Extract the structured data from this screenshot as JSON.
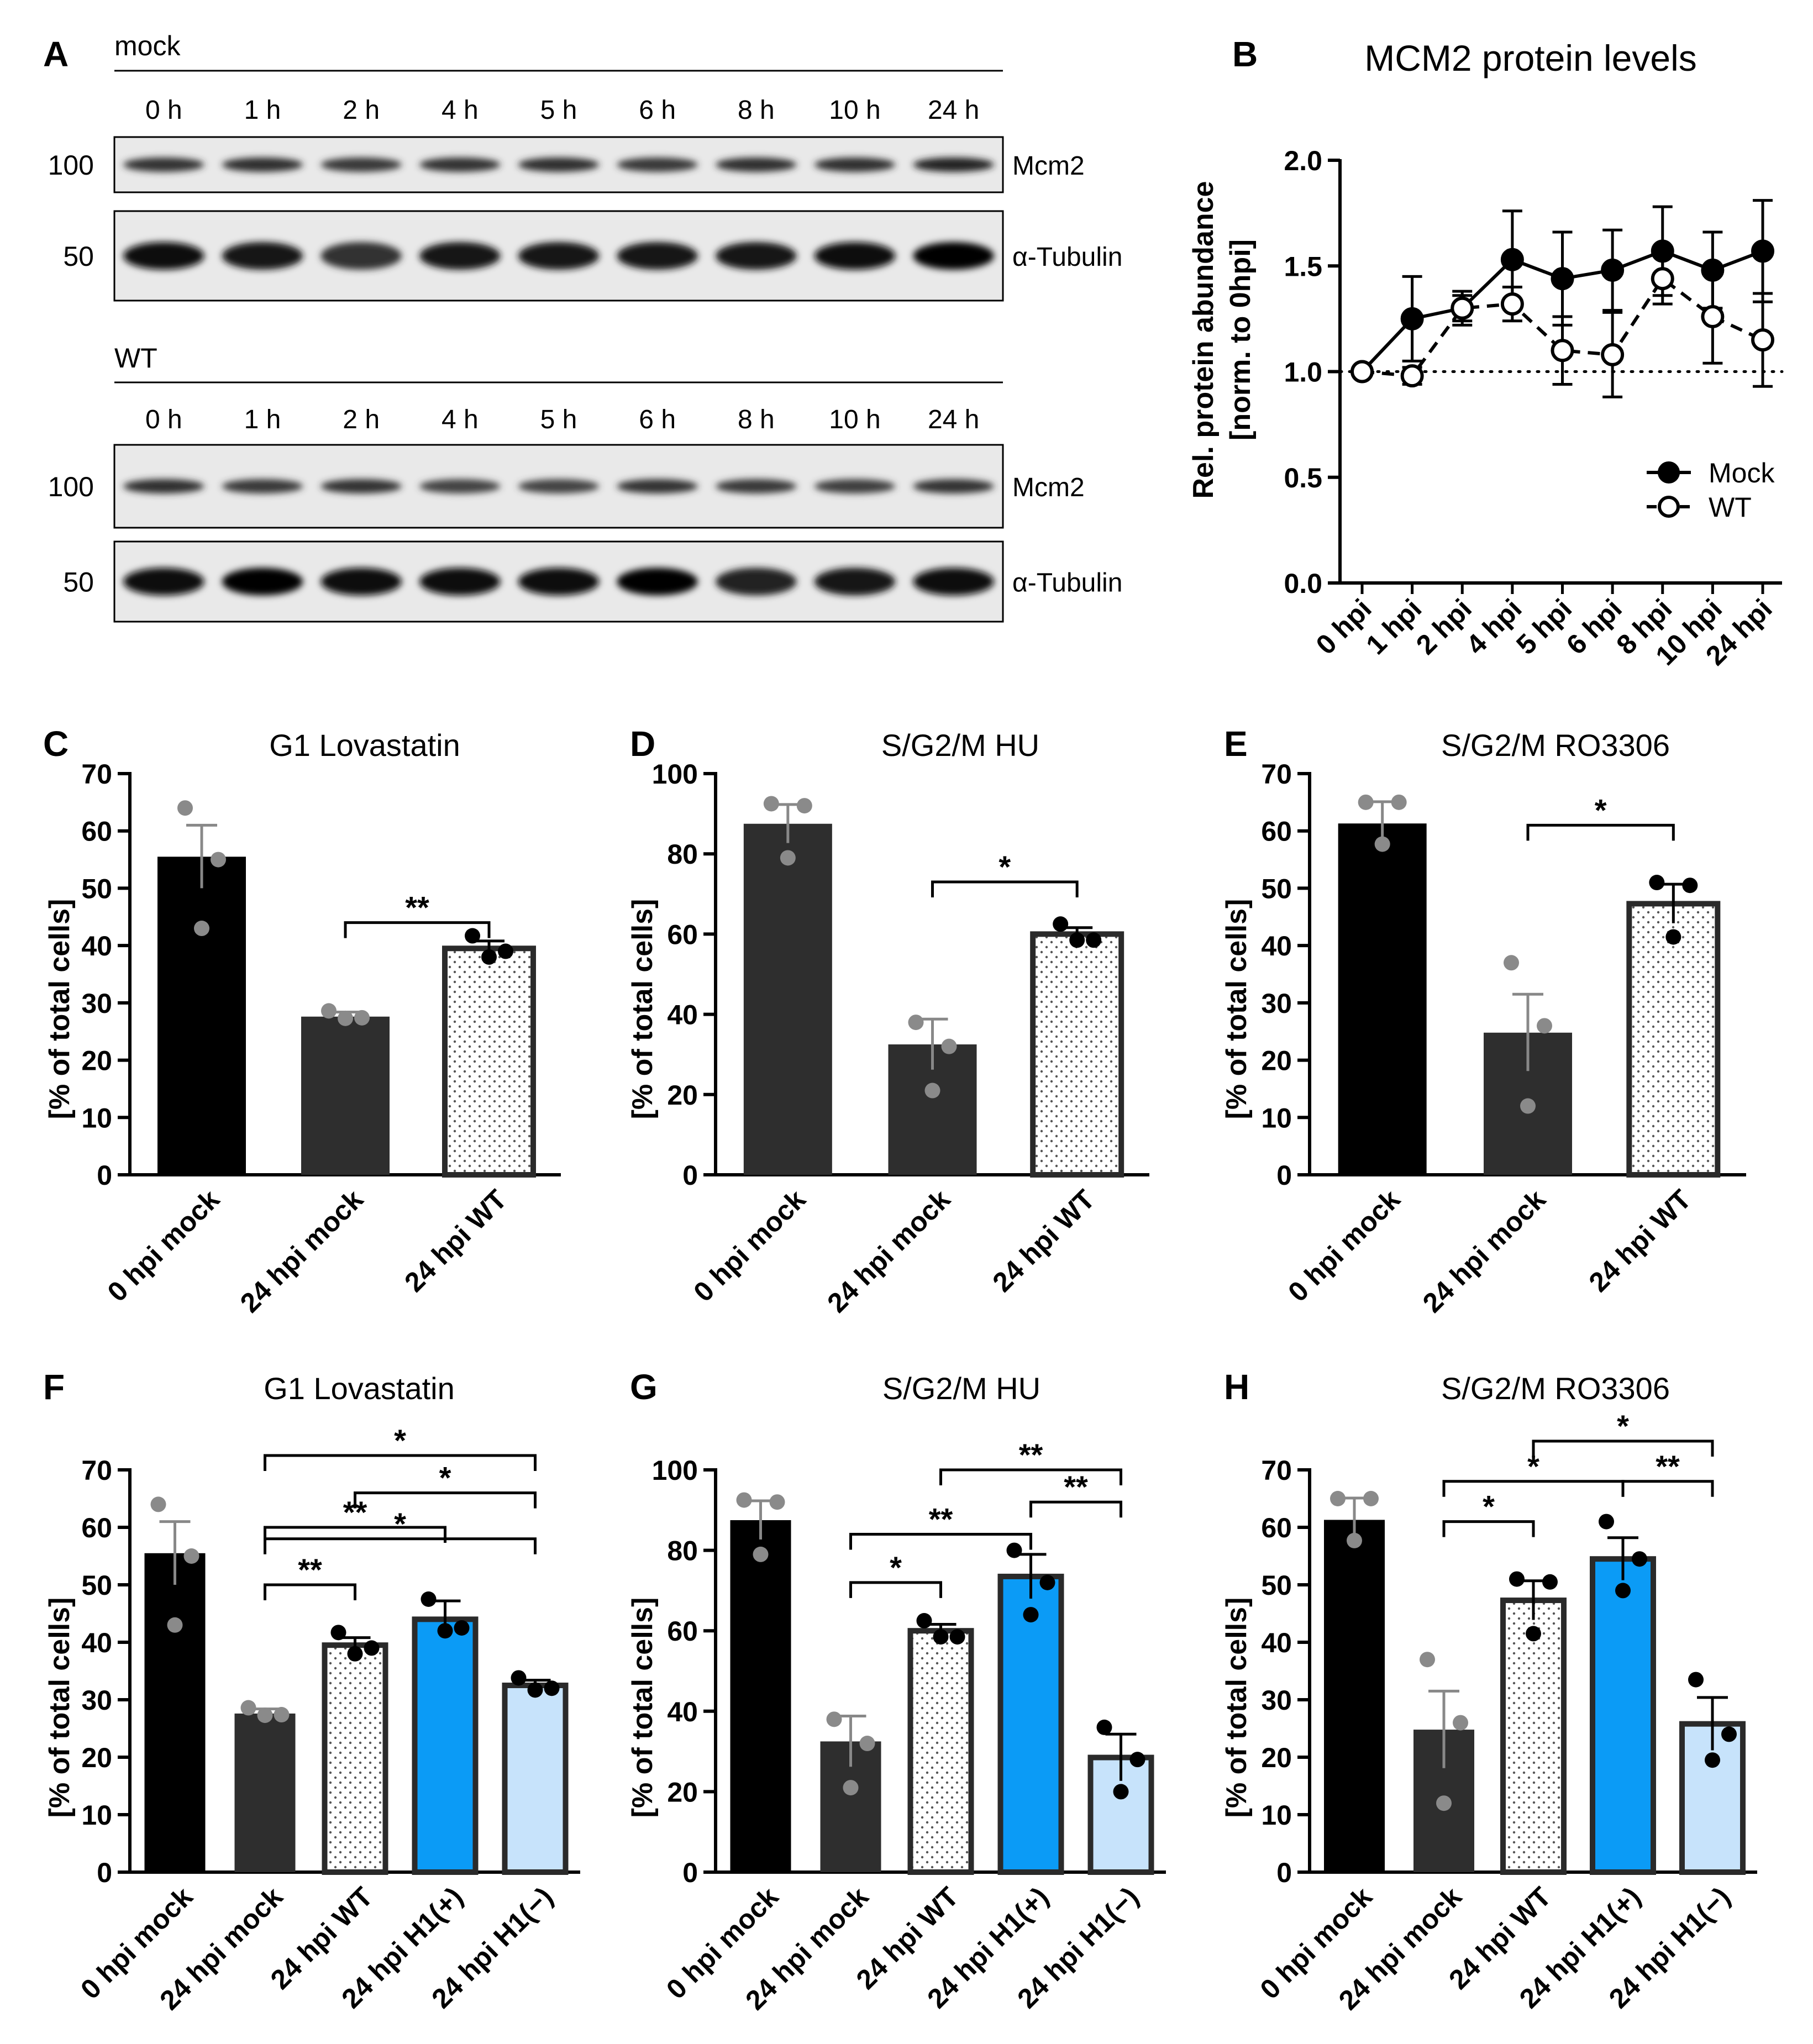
{
  "panels": {
    "A": {
      "label": "A",
      "blots": [
        {
          "group": "mock",
          "timepoints": [
            "0 h",
            "1 h",
            "2 h",
            "4 h",
            "5 h",
            "6 h",
            "8 h",
            "10 h",
            "24 h"
          ],
          "rows": [
            {
              "marker": "100",
              "protein": "Mcm2",
              "intensity": [
                0.8,
                0.82,
                0.78,
                0.8,
                0.82,
                0.78,
                0.82,
                0.82,
                0.86
              ]
            },
            {
              "marker": "50",
              "protein": "α-Tubulin",
              "intensity": [
                0.96,
                0.9,
                0.8,
                0.92,
                0.92,
                0.9,
                0.92,
                0.96,
                0.98
              ]
            }
          ]
        },
        {
          "group": "WT",
          "timepoints": [
            "0 h",
            "1 h",
            "2 h",
            "4 h",
            "5 h",
            "6 h",
            "8 h",
            "10 h",
            "24 h"
          ],
          "rows": [
            {
              "marker": "100",
              "protein": "Mcm2",
              "intensity": [
                0.82,
                0.78,
                0.8,
                0.74,
                0.74,
                0.8,
                0.78,
                0.76,
                0.8
              ]
            },
            {
              "marker": "50",
              "protein": "α-Tubulin",
              "intensity": [
                0.96,
                0.98,
                0.96,
                0.96,
                0.96,
                0.98,
                0.86,
                0.92,
                0.96
              ]
            }
          ]
        }
      ]
    },
    "B": {
      "label": "B",
      "title": "MCM2 protein levels",
      "ylabel_line1": "Rel. protein abundance",
      "ylabel_line2": "[norm. to 0hpi]"
    },
    "C": {
      "label": "C",
      "title": "G1 Lovastatin",
      "ylabel": "[% of total cells]"
    },
    "D": {
      "label": "D",
      "title": "S/G2/M HU",
      "ylabel": "[% of total cells]"
    },
    "E": {
      "label": "E",
      "title": "S/G2/M RO3306",
      "ylabel": "[% of total cells]"
    },
    "F": {
      "label": "F",
      "title": "G1 Lovastatin",
      "ylabel": "[% of total cells]"
    },
    "G": {
      "label": "G",
      "title": "S/G2/M HU",
      "ylabel": "[% of total cells]"
    },
    "H": {
      "label": "H",
      "title": "S/G2/M RO3306",
      "ylabel": "[% of total cells]"
    }
  },
  "colors": {
    "black": "#000000",
    "dark_gray": "#2e2e2e",
    "bright_blue": "#0b9bf6",
    "light_blue": "#c7e3fb",
    "dot_gray": "#8a8a8a",
    "white": "#ffffff"
  },
  "chart_data": [
    {
      "panel": "B",
      "type": "line",
      "title": "MCM2 protein levels",
      "categories": [
        "0 hpi",
        "1 hpi",
        "2 hpi",
        "4 hpi",
        "5 hpi",
        "6 hpi",
        "8 hpi",
        "10 hpi",
        "24 hpi"
      ],
      "ylim": [
        0,
        2.0
      ],
      "yticks": [
        "0.0",
        "0.5",
        "1.0",
        "1.5",
        "2.0"
      ],
      "reference_line": 1.0,
      "legend_position": "bottom-right",
      "series": [
        {
          "name": "Mock",
          "values": [
            1.0,
            1.25,
            1.3,
            1.53,
            1.44,
            1.48,
            1.57,
            1.48,
            1.57
          ],
          "error": [
            0.0,
            0.2,
            0.08,
            0.23,
            0.22,
            0.19,
            0.21,
            0.18,
            0.24
          ],
          "marker": "filled",
          "line": "solid"
        },
        {
          "name": "WT",
          "values": [
            1.0,
            0.98,
            1.3,
            1.32,
            1.1,
            1.08,
            1.44,
            1.26,
            1.15
          ],
          "error": [
            0.0,
            0.04,
            0.06,
            0.08,
            0.16,
            0.2,
            0.12,
            0.22,
            0.22
          ],
          "marker": "open",
          "line": "dashed"
        }
      ]
    },
    {
      "panel": "C",
      "type": "bar",
      "categories": [
        "0 hpi mock",
        "24 hpi mock",
        "24 hpi WT"
      ],
      "values": [
        55.5,
        27.6,
        39.5
      ],
      "error": [
        5.5,
        0.8,
        1.3
      ],
      "points": [
        [
          64,
          55,
          43
        ],
        [
          28.6,
          27.4,
          27.3
        ],
        [
          41.7,
          39.0,
          38.0
        ]
      ],
      "ylim": [
        0,
        70
      ],
      "yticks": [
        "0",
        "10",
        "20",
        "30",
        "40",
        "50",
        "60",
        "70"
      ],
      "fills": [
        "black",
        "dark",
        "dotted"
      ],
      "significance": [
        {
          "from": 1,
          "to": 2,
          "label": "**",
          "level": 44
        }
      ]
    },
    {
      "panel": "D",
      "type": "bar",
      "categories": [
        "0 hpi mock",
        "24 hpi mock",
        "24 hpi WT"
      ],
      "values": [
        87.5,
        32.5,
        60.0
      ],
      "error": [
        4.8,
        6.3,
        1.6
      ],
      "points": [
        [
          92.5,
          92.0,
          79.0
        ],
        [
          38.0,
          32.0,
          21.0
        ],
        [
          62.5,
          58.5,
          58.5
        ]
      ],
      "ylim": [
        0,
        100
      ],
      "yticks": [
        "0",
        "20",
        "40",
        "60",
        "80",
        "100"
      ],
      "fills": [
        "dark",
        "dark",
        "dotted"
      ],
      "significance": [
        {
          "from": 1,
          "to": 2,
          "label": "*",
          "level": 73
        }
      ]
    },
    {
      "panel": "E",
      "type": "bar",
      "categories": [
        "0 hpi mock",
        "24 hpi mock",
        "24 hpi WT"
      ],
      "values": [
        61.3,
        24.8,
        47.3
      ],
      "error": [
        3.8,
        6.7,
        3.4
      ],
      "points": [
        [
          65.0,
          65.0,
          57.7
        ],
        [
          37.0,
          26.0,
          12.0
        ],
        [
          51.0,
          50.5,
          41.5
        ]
      ],
      "ylim": [
        0,
        70
      ],
      "yticks": [
        "0",
        "10",
        "20",
        "30",
        "40",
        "50",
        "60",
        "70"
      ],
      "fills": [
        "black",
        "dark",
        "dotted"
      ],
      "significance": [
        {
          "from": 1,
          "to": 2,
          "label": "*",
          "level": 61
        }
      ]
    },
    {
      "panel": "F",
      "type": "bar",
      "categories": [
        "0 hpi mock",
        "24 hpi mock",
        "24 hpi WT",
        "24 hpi H1(+)",
        "24 hpi H1(−)"
      ],
      "values": [
        55.5,
        27.6,
        39.5,
        44.0,
        32.5
      ],
      "error": [
        5.5,
        0.8,
        1.3,
        3.2,
        0.9
      ],
      "points": [
        [
          64,
          55,
          43
        ],
        [
          28.6,
          27.4,
          27.3
        ],
        [
          41.7,
          39.0,
          38.0
        ],
        [
          47.5,
          42.5,
          42.0
        ],
        [
          33.8,
          32.0,
          31.7
        ]
      ],
      "ylim": [
        0,
        70
      ],
      "yticks": [
        "0",
        "10",
        "20",
        "30",
        "40",
        "50",
        "60",
        "70"
      ],
      "fills": [
        "black",
        "dark",
        "dotted",
        "blue",
        "lightblue"
      ],
      "significance": [
        {
          "from": 1,
          "to": 2,
          "label": "**",
          "level": 50
        },
        {
          "from": 1,
          "to": 4,
          "label": "*",
          "level": 58
        },
        {
          "from": 1,
          "to": 3,
          "label": "**",
          "level": 60
        },
        {
          "from": 2,
          "to": 4,
          "label": "*",
          "level": 66
        },
        {
          "from": 1,
          "to": 4,
          "label": "*",
          "level": 72.5
        }
      ]
    },
    {
      "panel": "G",
      "type": "bar",
      "categories": [
        "0 hpi mock",
        "24 hpi mock",
        "24 hpi WT",
        "24 hpi H1(+)",
        "24 hpi H1(−)"
      ],
      "values": [
        87.5,
        32.5,
        60.0,
        73.5,
        28.5
      ],
      "error": [
        4.8,
        6.3,
        1.6,
        5.5,
        5.8
      ],
      "points": [
        [
          92.5,
          92.0,
          79.0
        ],
        [
          38.0,
          32.0,
          21.0
        ],
        [
          62.5,
          58.5,
          58.5
        ],
        [
          80.0,
          72.0,
          64.0
        ],
        [
          36.0,
          28.0,
          20.0
        ]
      ],
      "ylim": [
        0,
        100
      ],
      "yticks": [
        "0",
        "20",
        "40",
        "60",
        "80",
        "100"
      ],
      "fills": [
        "black",
        "dark",
        "dotted",
        "blue",
        "lightblue"
      ],
      "significance": [
        {
          "from": 1,
          "to": 2,
          "label": "*",
          "level": 72
        },
        {
          "from": 1,
          "to": 3,
          "label": "**",
          "level": 84
        },
        {
          "from": 3,
          "to": 4,
          "label": "**",
          "level": 92
        },
        {
          "from": 2,
          "to": 4,
          "label": "**",
          "level": 100
        }
      ]
    },
    {
      "panel": "H",
      "type": "bar",
      "categories": [
        "0 hpi mock",
        "24 hpi mock",
        "24 hpi WT",
        "24 hpi H1(+)",
        "24 hpi H1(−)"
      ],
      "values": [
        61.3,
        24.8,
        47.3,
        54.5,
        25.8
      ],
      "error": [
        3.8,
        6.7,
        3.4,
        3.7,
        4.6
      ],
      "points": [
        [
          65.0,
          65.0,
          57.7
        ],
        [
          37.0,
          26.0,
          12.0
        ],
        [
          51.0,
          50.5,
          41.5
        ],
        [
          61.0,
          54.5,
          49.0
        ],
        [
          33.5,
          24.0,
          19.5
        ]
      ],
      "ylim": [
        0,
        70
      ],
      "yticks": [
        "0",
        "10",
        "20",
        "30",
        "40",
        "50",
        "60",
        "70"
      ],
      "fills": [
        "black",
        "dark",
        "dotted",
        "blue",
        "lightblue"
      ],
      "significance": [
        {
          "from": 1,
          "to": 2,
          "label": "*",
          "level": 61
        },
        {
          "from": 1,
          "to": 3,
          "label": "*",
          "level": 68
        },
        {
          "from": 3,
          "to": 4,
          "label": "**",
          "level": 68
        },
        {
          "from": 2,
          "to": 4,
          "label": "*",
          "level": 75
        }
      ]
    }
  ]
}
